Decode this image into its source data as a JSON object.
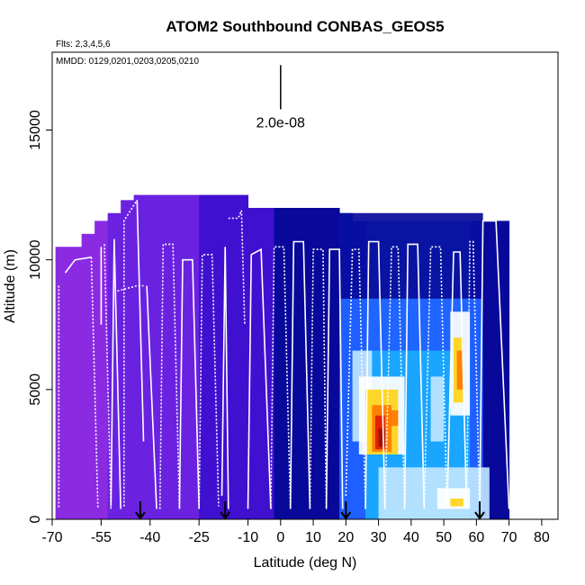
{
  "chart_data": {
    "type": "heatmap",
    "title": "ATOM2 Southbound CONBAS_GEOS5",
    "flights_label": "Flts: 2,3,4,5,6",
    "dates_label": "MMDD: 0129,0201,0203,0205,0210",
    "xlabel": "Latitude (deg N)",
    "ylabel": "Altitude (m)",
    "xlim": [
      -70,
      85
    ],
    "ylim": [
      0,
      18000
    ],
    "x_ticks": [
      -70,
      -55,
      -40,
      -25,
      -10,
      0,
      10,
      20,
      30,
      40,
      50,
      60,
      70,
      80
    ],
    "y_ticks": [
      0,
      5000,
      10000,
      15000
    ],
    "scale_bar": {
      "label": "2.0e-08",
      "x": 0,
      "y_bottom": 15800,
      "y_top": 17500
    },
    "arrow_latitudes": [
      -43,
      -17,
      20,
      61
    ],
    "colors": {
      "purple": "#8a2be2",
      "violet": "#6a22e0",
      "indigo": "#4010d0",
      "navy": "#08089a",
      "blue": "#1f5fff",
      "sky": "#1aa6ff",
      "light": "#bfe6ff",
      "white": "#ffffff",
      "yellow": "#ffd21a",
      "orange": "#ff7a00",
      "red": "#e01a00",
      "darkred": "#a01000"
    },
    "field_columns": [
      {
        "x0": -69,
        "x1": -65,
        "top": 10500,
        "color": "purple"
      },
      {
        "x0": -65,
        "x1": -61,
        "top": 10500,
        "color": "purple"
      },
      {
        "x0": -61,
        "x1": -57,
        "top": 11000,
        "color": "purple"
      },
      {
        "x0": -57,
        "x1": -53,
        "top": 11500,
        "color": "purple"
      },
      {
        "x0": -53,
        "x1": -49,
        "top": 11800,
        "color": "violet"
      },
      {
        "x0": -49,
        "x1": -45,
        "top": 12300,
        "color": "violet"
      },
      {
        "x0": -45,
        "x1": -41,
        "top": 12500,
        "color": "violet"
      },
      {
        "x0": -41,
        "x1": -37,
        "top": 12500,
        "color": "violet"
      },
      {
        "x0": -37,
        "x1": -33,
        "top": 12500,
        "color": "violet"
      },
      {
        "x0": -33,
        "x1": -29,
        "top": 12500,
        "color": "violet"
      },
      {
        "x0": -29,
        "x1": -25,
        "top": 12500,
        "color": "violet"
      },
      {
        "x0": -25,
        "x1": -21,
        "top": 12500,
        "color": "indigo"
      },
      {
        "x0": -21,
        "x1": -17,
        "top": 12500,
        "color": "indigo"
      },
      {
        "x0": -17,
        "x1": -13,
        "top": 12500,
        "color": "indigo"
      },
      {
        "x0": -13,
        "x1": -10,
        "top": 12500,
        "color": "indigo"
      },
      {
        "x0": -10,
        "x1": -6,
        "top": 12000,
        "color": "indigo"
      },
      {
        "x0": -6,
        "x1": -2,
        "top": 12000,
        "color": "indigo"
      },
      {
        "x0": -2,
        "x1": 2,
        "top": 12000,
        "color": "navy"
      },
      {
        "x0": 2,
        "x1": 6,
        "top": 12000,
        "color": "navy"
      },
      {
        "x0": 6,
        "x1": 10,
        "top": 12000,
        "color": "navy"
      },
      {
        "x0": 10,
        "x1": 14,
        "top": 12000,
        "color": "navy"
      },
      {
        "x0": 14,
        "x1": 18,
        "top": 12000,
        "color": "navy"
      },
      {
        "x0": 18,
        "x1": 22,
        "top": 11800,
        "color": "blue"
      },
      {
        "x0": 22,
        "x1": 26,
        "top": 11500,
        "color": "blue"
      },
      {
        "x0": 26,
        "x1": 30,
        "top": 11500,
        "color": "sky"
      },
      {
        "x0": 30,
        "x1": 34,
        "top": 11500,
        "color": "sky"
      },
      {
        "x0": 34,
        "x1": 38,
        "top": 11500,
        "color": "sky"
      },
      {
        "x0": 38,
        "x1": 42,
        "top": 11500,
        "color": "sky"
      },
      {
        "x0": 42,
        "x1": 46,
        "top": 11500,
        "color": "sky"
      },
      {
        "x0": 46,
        "x1": 50,
        "top": 11500,
        "color": "sky"
      },
      {
        "x0": 50,
        "x1": 54,
        "top": 11500,
        "color": "sky"
      },
      {
        "x0": 54,
        "x1": 58,
        "top": 11500,
        "color": "sky"
      },
      {
        "x0": 58,
        "x1": 62,
        "top": 11500,
        "color": "blue"
      },
      {
        "x0": 62,
        "x1": 66,
        "top": 11500,
        "color": "navy"
      },
      {
        "x0": 66,
        "x1": 70,
        "top": 11500,
        "color": "navy"
      }
    ],
    "field_patches": [
      {
        "x0": 18,
        "x1": 62,
        "y0": 11800,
        "y1": 8500,
        "color": "navy"
      },
      {
        "x0": 20,
        "x1": 60,
        "y0": 8500,
        "y1": 6500,
        "color": "blue"
      },
      {
        "x0": 22,
        "x1": 28,
        "y0": 6500,
        "y1": 3000,
        "color": "light"
      },
      {
        "x0": 24,
        "x1": 38,
        "y0": 5500,
        "y1": 2500,
        "color": "white"
      },
      {
        "x0": 26,
        "x1": 36,
        "y0": 5000,
        "y1": 2500,
        "color": "yellow"
      },
      {
        "x0": 28,
        "x1": 34,
        "y0": 4400,
        "y1": 2600,
        "color": "orange"
      },
      {
        "x0": 29,
        "x1": 32,
        "y0": 4000,
        "y1": 2700,
        "color": "red"
      },
      {
        "x0": 30,
        "x1": 32,
        "y0": 3500,
        "y1": 2800,
        "color": "darkred"
      },
      {
        "x0": 32,
        "x1": 36,
        "y0": 4200,
        "y1": 3600,
        "color": "orange"
      },
      {
        "x0": 46,
        "x1": 50,
        "y0": 5500,
        "y1": 3000,
        "color": "light"
      },
      {
        "x0": 52,
        "x1": 58,
        "y0": 8000,
        "y1": 4000,
        "color": "white"
      },
      {
        "x0": 53,
        "x1": 56,
        "y0": 7000,
        "y1": 4500,
        "color": "yellow"
      },
      {
        "x0": 54,
        "x1": 56,
        "y0": 6500,
        "y1": 5000,
        "color": "orange"
      },
      {
        "x0": 30,
        "x1": 64,
        "y0": 2000,
        "y1": 0,
        "color": "light"
      },
      {
        "x0": 48,
        "x1": 58,
        "y0": 1200,
        "y1": 400,
        "color": "white"
      },
      {
        "x0": 52,
        "x1": 56,
        "y0": 800,
        "y1": 500,
        "color": "yellow"
      }
    ],
    "flight_profiles": [
      [
        [
          -68,
          9000
        ],
        [
          -68,
          400
        ]
      ],
      [
        [
          -66,
          9500
        ],
        [
          -63,
          10000
        ],
        [
          -58,
          10100
        ]
      ],
      [
        [
          -58,
          10100
        ],
        [
          -56,
          400
        ]
      ],
      [
        [
          -55,
          7500
        ],
        [
          -55,
          10500
        ]
      ],
      [
        [
          -54,
          10600
        ],
        [
          -52,
          400
        ]
      ],
      [
        [
          -52,
          500
        ],
        [
          -51,
          10800
        ],
        [
          -49,
          400
        ]
      ],
      [
        [
          -48,
          500
        ],
        [
          -48,
          11500
        ],
        [
          -44,
          12300
        ]
      ],
      [
        [
          -44,
          12300
        ],
        [
          -42,
          3000
        ]
      ],
      [
        [
          -50,
          8800
        ],
        [
          -44,
          9000
        ],
        [
          -42,
          9000
        ]
      ],
      [
        [
          -41,
          9000
        ],
        [
          -38,
          400
        ]
      ],
      [
        [
          -37,
          400
        ],
        [
          -36,
          10600
        ],
        [
          -33,
          10600
        ],
        [
          -31,
          400
        ]
      ],
      [
        [
          -31,
          400
        ],
        [
          -30,
          10000
        ],
        [
          -27,
          10000
        ],
        [
          -25,
          400
        ]
      ],
      [
        [
          -25,
          400
        ],
        [
          -24,
          10200
        ],
        [
          -21,
          10200
        ],
        [
          -19,
          500
        ]
      ],
      [
        [
          -18,
          900
        ],
        [
          -17,
          10500
        ],
        [
          -16,
          400
        ]
      ],
      [
        [
          -16,
          11600
        ],
        [
          -13,
          11600
        ],
        [
          -12,
          11900
        ],
        [
          -11,
          7500
        ]
      ],
      [
        [
          -10,
          400
        ],
        [
          -9,
          10200
        ],
        [
          -6,
          10400
        ],
        [
          -3,
          400
        ]
      ],
      [
        [
          -3,
          400
        ],
        [
          -2,
          10500
        ],
        [
          1,
          10500
        ],
        [
          3,
          400
        ]
      ],
      [
        [
          3,
          400
        ],
        [
          4,
          10700
        ],
        [
          7,
          10700
        ],
        [
          9,
          400
        ]
      ],
      [
        [
          9,
          400
        ],
        [
          10,
          10400
        ],
        [
          13,
          10400
        ],
        [
          14,
          400
        ]
      ],
      [
        [
          14,
          400
        ],
        [
          15,
          10400
        ],
        [
          18,
          10400
        ],
        [
          19,
          400
        ]
      ],
      [
        [
          20,
          900
        ],
        [
          22,
          10400
        ],
        [
          24,
          10400
        ],
        [
          26,
          400
        ]
      ],
      [
        [
          26,
          400
        ],
        [
          27,
          10700
        ],
        [
          30,
          10700
        ],
        [
          32,
          400
        ]
      ],
      [
        [
          32,
          400
        ],
        [
          34,
          10500
        ],
        [
          36,
          10500
        ],
        [
          38,
          400
        ]
      ],
      [
        [
          38,
          400
        ],
        [
          39,
          10600
        ],
        [
          42,
          10600
        ],
        [
          44,
          400
        ]
      ],
      [
        [
          44,
          400
        ],
        [
          46,
          10500
        ],
        [
          49,
          10500
        ],
        [
          51,
          400
        ]
      ],
      [
        [
          51,
          400
        ],
        [
          53,
          10300
        ],
        [
          55,
          10300
        ],
        [
          57,
          400
        ]
      ],
      [
        [
          57,
          400
        ],
        [
          58,
          10700
        ],
        [
          59,
          10700
        ],
        [
          61,
          400
        ]
      ],
      [
        [
          61,
          400
        ],
        [
          62,
          11500
        ],
        [
          66,
          11500
        ],
        [
          70,
          400
        ]
      ]
    ]
  }
}
